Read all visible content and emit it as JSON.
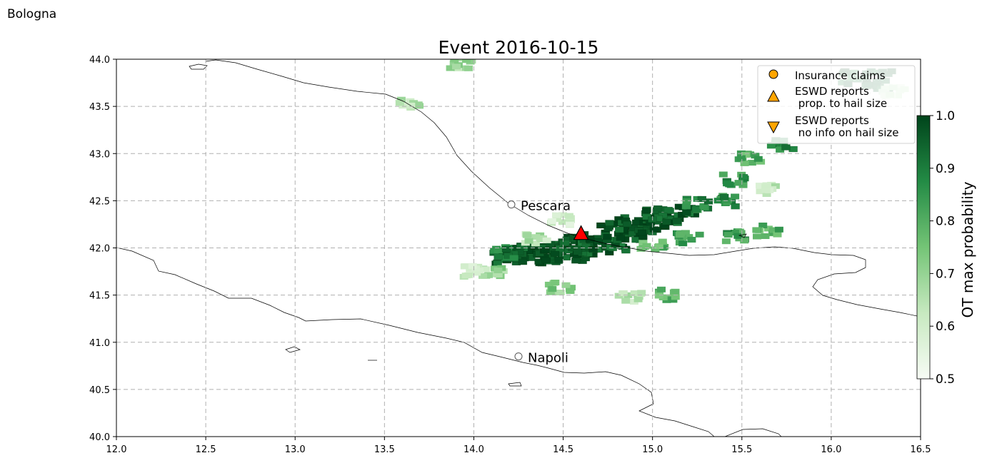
{
  "corner_label": "Bologna",
  "chart_data": {
    "type": "heatmap",
    "title": "Event 2016-10-15",
    "xlim": [
      12.0,
      16.5
    ],
    "ylim": [
      40.0,
      44.0
    ],
    "x_ticks": [
      12.0,
      12.5,
      13.0,
      13.5,
      14.0,
      14.5,
      15.0,
      15.5,
      16.0,
      16.5
    ],
    "y_ticks": [
      40.0,
      40.5,
      41.0,
      41.5,
      42.0,
      42.5,
      43.0,
      43.5,
      44.0
    ],
    "x_tick_labels": [
      "12.0",
      "12.5",
      "13.0",
      "13.5",
      "14.0",
      "14.5",
      "15.0",
      "15.5",
      "16.0",
      "16.5"
    ],
    "y_tick_labels": [
      "40.0",
      "40.5",
      "41.0",
      "41.5",
      "42.0",
      "42.5",
      "43.0",
      "43.5",
      "44.0"
    ],
    "grid": true,
    "colorbar": {
      "label": "OT max probability",
      "range": [
        0.5,
        1.0
      ],
      "ticks": [
        0.5,
        0.6,
        0.7,
        0.8,
        0.9,
        1.0
      ],
      "tick_labels": [
        "0.5",
        "0.6",
        "0.7",
        "0.8",
        "0.9",
        "1.0"
      ],
      "colormap": [
        "#f7fcf5",
        "#c7e9c0",
        "#74c476",
        "#238b45",
        "#00441b"
      ]
    },
    "cities": [
      {
        "name": "Pescara",
        "lon": 14.21,
        "lat": 42.46
      },
      {
        "name": "Napoli",
        "lon": 14.25,
        "lat": 40.85
      }
    ],
    "eswd_reports_hail_size": [
      {
        "lon": 14.6,
        "lat": 42.15
      }
    ],
    "ot_cells": [
      {
        "lon": 14.25,
        "lat": 41.92,
        "p": 0.94
      },
      {
        "lon": 14.38,
        "lat": 41.93,
        "p": 0.96
      },
      {
        "lon": 14.5,
        "lat": 41.95,
        "p": 0.98
      },
      {
        "lon": 14.62,
        "lat": 42.02,
        "p": 0.97
      },
      {
        "lon": 14.72,
        "lat": 42.05,
        "p": 0.95
      },
      {
        "lon": 14.85,
        "lat": 42.18,
        "p": 0.98
      },
      {
        "lon": 14.95,
        "lat": 42.25,
        "p": 0.97
      },
      {
        "lon": 15.1,
        "lat": 42.35,
        "p": 0.95
      },
      {
        "lon": 15.25,
        "lat": 42.46,
        "p": 0.88
      },
      {
        "lon": 15.45,
        "lat": 42.72,
        "p": 0.85
      },
      {
        "lon": 15.55,
        "lat": 42.95,
        "p": 0.8
      },
      {
        "lon": 14.1,
        "lat": 41.75,
        "p": 0.7
      },
      {
        "lon": 14.18,
        "lat": 41.95,
        "p": 0.9
      },
      {
        "lon": 14.35,
        "lat": 42.1,
        "p": 0.65
      },
      {
        "lon": 14.5,
        "lat": 42.3,
        "p": 0.6
      },
      {
        "lon": 15.0,
        "lat": 42.03,
        "p": 0.78
      },
      {
        "lon": 15.2,
        "lat": 42.1,
        "p": 0.82
      },
      {
        "lon": 15.45,
        "lat": 42.12,
        "p": 0.84
      },
      {
        "lon": 15.65,
        "lat": 42.18,
        "p": 0.8
      },
      {
        "lon": 15.42,
        "lat": 42.5,
        "p": 0.86
      },
      {
        "lon": 15.65,
        "lat": 42.62,
        "p": 0.62
      },
      {
        "lon": 15.72,
        "lat": 43.1,
        "p": 0.88
      },
      {
        "lon": 16.2,
        "lat": 43.78,
        "p": 0.93
      },
      {
        "lon": 16.35,
        "lat": 43.65,
        "p": 0.6
      },
      {
        "lon": 13.65,
        "lat": 43.52,
        "p": 0.65
      },
      {
        "lon": 13.92,
        "lat": 43.95,
        "p": 0.68
      },
      {
        "lon": 14.48,
        "lat": 41.58,
        "p": 0.72
      },
      {
        "lon": 14.88,
        "lat": 41.47,
        "p": 0.64
      },
      {
        "lon": 15.1,
        "lat": 41.5,
        "p": 0.78
      },
      {
        "lon": 14.0,
        "lat": 41.75,
        "p": 0.6
      }
    ]
  },
  "legend": {
    "items": [
      {
        "label": "Insurance claims",
        "marker": "circle",
        "color": "#ffa500"
      },
      {
        "label": "ESWD reports\n prop. to hail size",
        "marker": "triangle-up",
        "color": "#ffa500"
      },
      {
        "label": "ESWD reports\n no info on hail size",
        "marker": "triangle-down",
        "color": "#ffa500"
      }
    ]
  }
}
